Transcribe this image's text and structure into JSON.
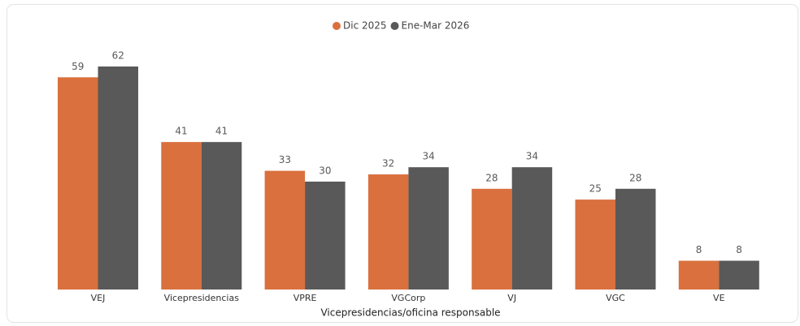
{
  "chart_data": {
    "type": "bar",
    "x_label": "Vicepresidencias/oficina responsable",
    "categories": [
      "VEJ",
      "Vicepresidencias",
      "VPRE",
      "VGCorp",
      "VJ",
      "VGC",
      "VE"
    ],
    "series": [
      {
        "name": "Dic 2025",
        "color": "#d9703d",
        "values": [
          59,
          41,
          33,
          32,
          28,
          25,
          8
        ]
      },
      {
        "name": "Ene-Mar 2026",
        "color": "#595959",
        "values": [
          62,
          41,
          30,
          34,
          34,
          28,
          8
        ]
      }
    ],
    "ylim": [
      0,
      62
    ],
    "legend": "top"
  }
}
